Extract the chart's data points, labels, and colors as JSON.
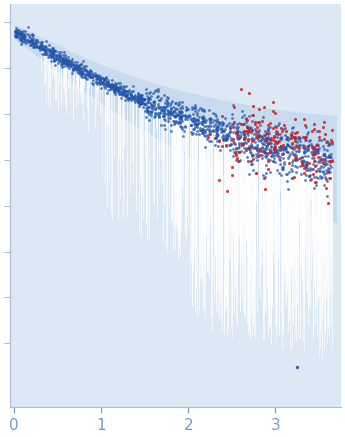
{
  "xlim": [
    -0.05,
    3.75
  ],
  "ylim": [
    -1.1,
    1.1
  ],
  "x_ticks": [
    0,
    1,
    2,
    3
  ],
  "background_color": "#ffffff",
  "plot_bg_color": "#dce9f5",
  "fill_color": "#c5d8ec",
  "fill_alpha": 0.85,
  "blue_dot_color": "#2255aa",
  "red_dot_color": "#cc2222",
  "dot_size": 4,
  "seed": 42
}
